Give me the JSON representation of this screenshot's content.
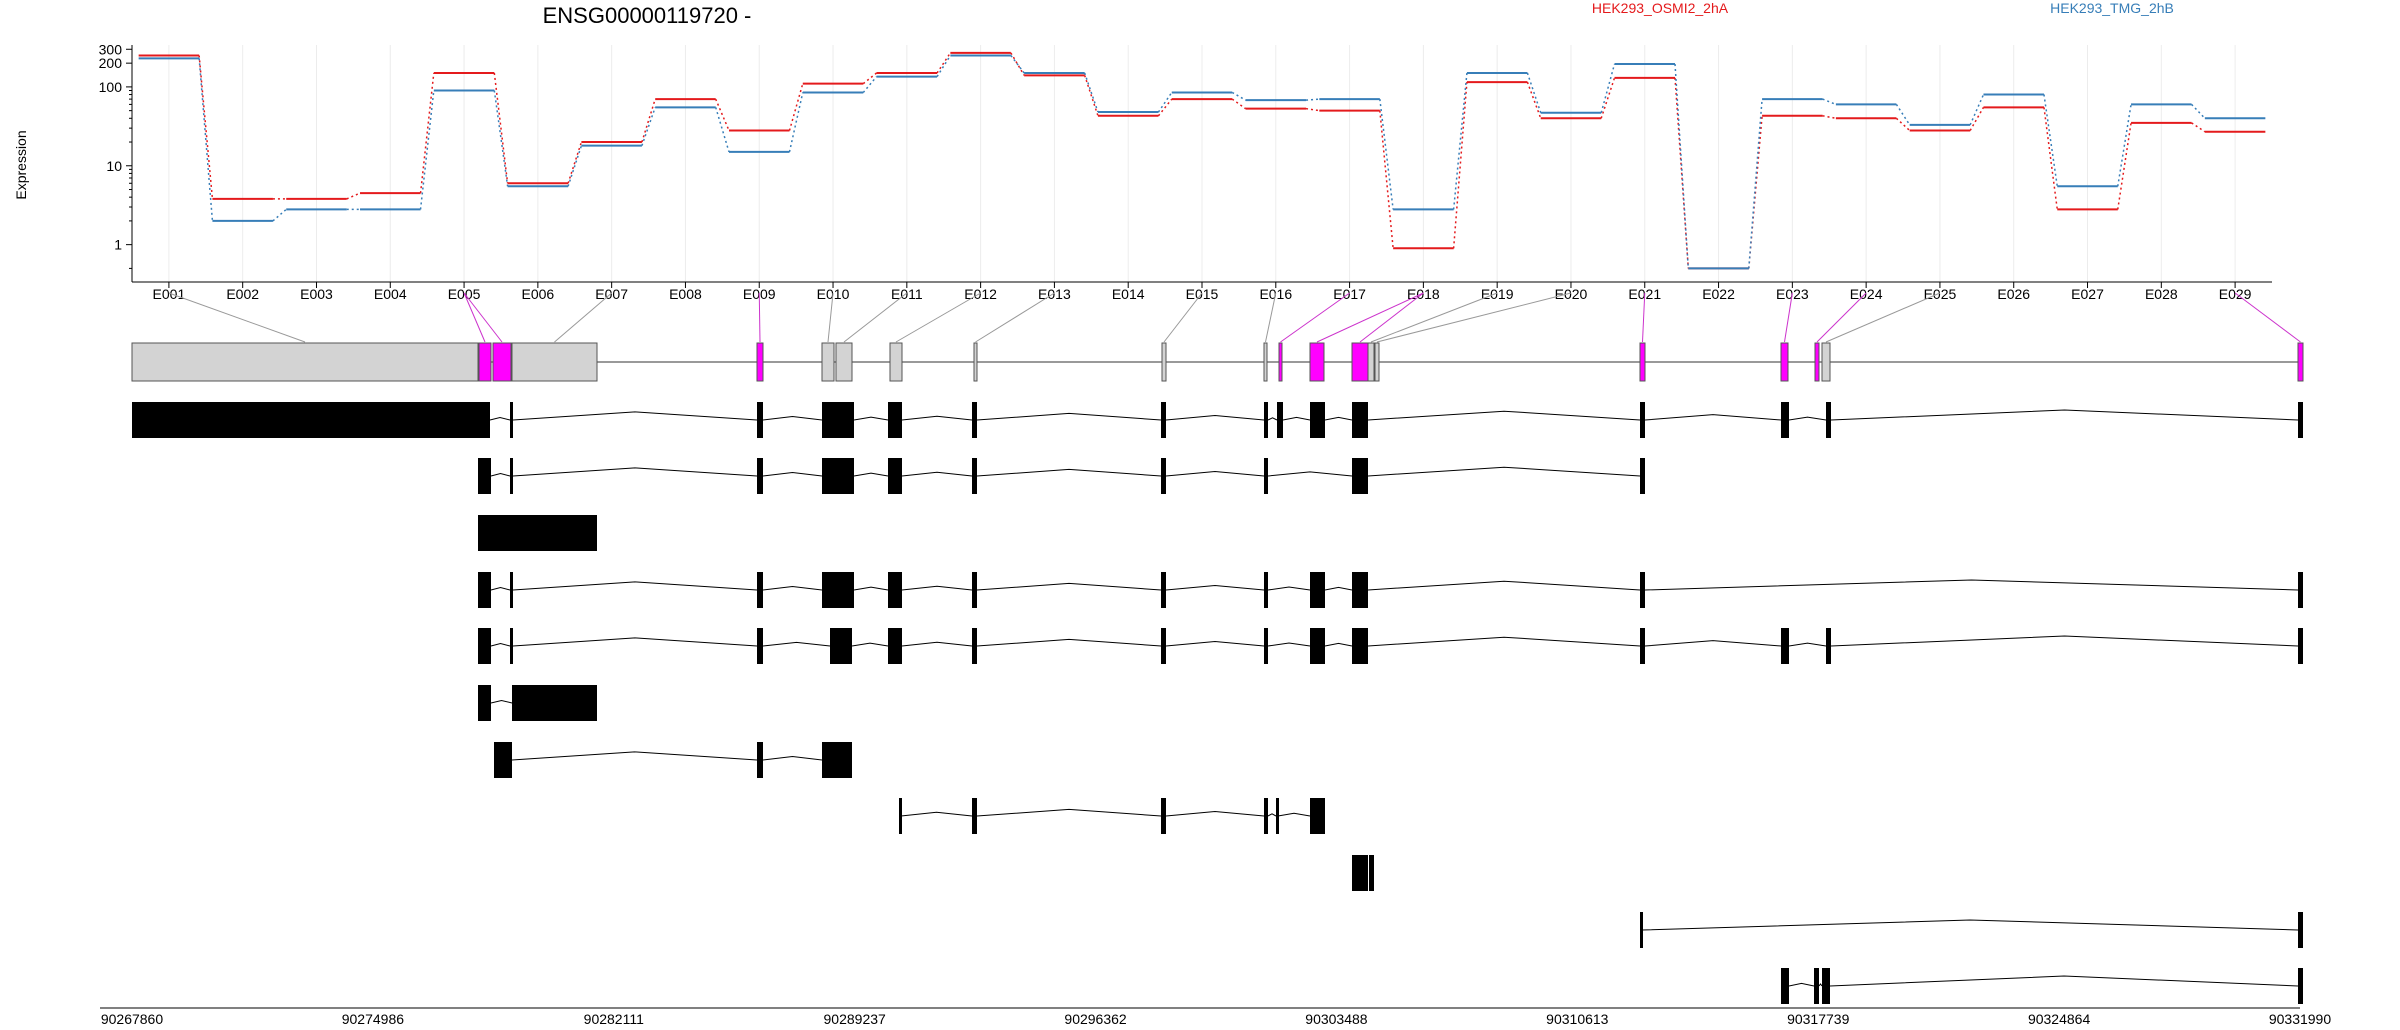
{
  "chart_data": {
    "type": "line",
    "title": "ENSG00000119720 -",
    "ylabel": "Expression",
    "y_scale": "log",
    "ylim": [
      0.45,
      330
    ],
    "y_ticks": [
      {
        "label": "300",
        "value": 300
      },
      {
        "label": "200",
        "value": 200
      },
      {
        "label": "100",
        "value": 100
      },
      {
        "label": "10",
        "value": 10
      },
      {
        "label": "1",
        "value": 1
      }
    ],
    "categories": [
      "E001",
      "E002",
      "E003",
      "E004",
      "E005",
      "E006",
      "E007",
      "E008",
      "E009",
      "E010",
      "E011",
      "E012",
      "E013",
      "E014",
      "E015",
      "E016",
      "E017",
      "E018",
      "E019",
      "E020",
      "E021",
      "E022",
      "E023",
      "E024",
      "E025",
      "E026",
      "E027",
      "E028",
      "E029"
    ],
    "series": [
      {
        "name": "HEK293_OSMI2_2hA",
        "color": "#e41a1c",
        "values": [
          250,
          3.8,
          3.8,
          4.5,
          150,
          6,
          20,
          70,
          28,
          110,
          150,
          270,
          140,
          43,
          70,
          53,
          50,
          0.9,
          115,
          40,
          130,
          0.5,
          43,
          40,
          28,
          55,
          2.8,
          35,
          27
        ]
      },
      {
        "name": "HEK293_TMG_2hB",
        "color": "#377eb8",
        "values": [
          230,
          2,
          2.8,
          2.8,
          90,
          5.5,
          18,
          55,
          15,
          85,
          135,
          250,
          150,
          48,
          85,
          68,
          70,
          2.8,
          150,
          47,
          195,
          0.5,
          70,
          60,
          33,
          80,
          5.5,
          60,
          40
        ]
      }
    ],
    "genome_axis": {
      "ticks": [
        "90267860",
        "90274986",
        "90282111",
        "90289237",
        "90296362",
        "90303488",
        "90310613",
        "90317739",
        "90324864",
        "90331990"
      ]
    },
    "colors": {
      "highlight_exon": "#ff00ff",
      "normal_exon": "#d3d3d3",
      "transcript_exon": "#000000"
    }
  }
}
